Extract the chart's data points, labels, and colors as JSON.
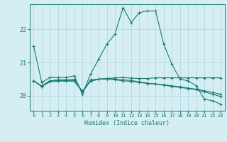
{
  "xlabel": "Humidex (Indice chaleur)",
  "bg_color": "#d4eef4",
  "grid_color": "#b0d4dc",
  "line_color": "#1a7a6e",
  "xlim": [
    -0.5,
    23.5
  ],
  "ylim": [
    19.55,
    22.75
  ],
  "yticks": [
    20,
    21,
    22
  ],
  "xticks": [
    0,
    1,
    2,
    3,
    4,
    5,
    6,
    7,
    8,
    9,
    10,
    11,
    12,
    13,
    14,
    15,
    16,
    17,
    18,
    19,
    20,
    21,
    22,
    23
  ],
  "lines": [
    {
      "x": [
        0,
        1,
        2,
        3,
        4,
        5,
        6,
        7,
        8,
        9,
        10,
        11,
        12,
        13,
        14,
        15,
        16,
        17,
        18,
        19,
        20,
        21,
        22,
        23
      ],
      "y": [
        21.5,
        20.4,
        20.55,
        20.55,
        20.55,
        20.6,
        20.05,
        20.65,
        21.1,
        21.55,
        21.85,
        22.65,
        22.2,
        22.5,
        22.55,
        22.55,
        21.55,
        20.95,
        20.5,
        20.45,
        20.3,
        19.9,
        19.85,
        19.75
      ]
    },
    {
      "x": [
        0,
        1,
        2,
        3,
        4,
        5,
        6,
        7,
        8,
        9,
        10,
        11,
        12,
        13,
        14,
        15,
        16,
        17,
        18,
        19,
        20,
        21,
        22,
        23
      ],
      "y": [
        20.45,
        20.3,
        20.45,
        20.48,
        20.48,
        20.5,
        20.1,
        20.48,
        20.5,
        20.52,
        20.54,
        20.55,
        20.53,
        20.52,
        20.52,
        20.54,
        20.54,
        20.54,
        20.54,
        20.54,
        20.54,
        20.54,
        20.54,
        20.54
      ]
    },
    {
      "x": [
        0,
        1,
        2,
        3,
        4,
        5,
        6,
        7,
        8,
        9,
        10,
        11,
        12,
        13,
        14,
        15,
        16,
        17,
        18,
        19,
        20,
        21,
        22,
        23
      ],
      "y": [
        20.45,
        20.28,
        20.42,
        20.44,
        20.44,
        20.44,
        20.12,
        20.44,
        20.5,
        20.5,
        20.48,
        20.45,
        20.43,
        20.4,
        20.37,
        20.35,
        20.32,
        20.28,
        20.25,
        20.22,
        20.18,
        20.12,
        20.05,
        19.98
      ]
    },
    {
      "x": [
        0,
        1,
        2,
        3,
        4,
        5,
        6,
        7,
        8,
        9,
        10,
        11,
        12,
        13,
        14,
        15,
        16,
        17,
        18,
        19,
        20,
        21,
        22,
        23
      ],
      "y": [
        20.45,
        20.28,
        20.44,
        20.46,
        20.46,
        20.46,
        20.14,
        20.44,
        20.5,
        20.52,
        20.5,
        20.48,
        20.46,
        20.42,
        20.38,
        20.36,
        20.33,
        20.3,
        20.27,
        20.23,
        20.2,
        20.15,
        20.1,
        20.05
      ]
    }
  ]
}
